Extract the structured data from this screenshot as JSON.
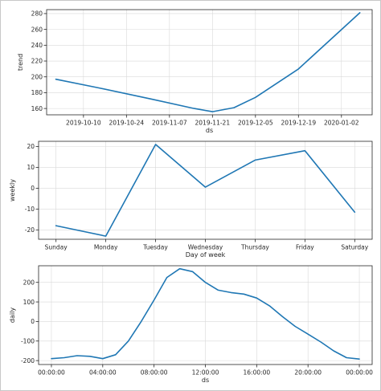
{
  "chart_data": [
    {
      "type": "line",
      "xlabel": "ds",
      "ylabel": "trend",
      "x_type": "date",
      "xlim": [
        "2019-09-28",
        "2020-01-12"
      ],
      "ylim": [
        152,
        285
      ],
      "xticks": [
        "2019-10-10",
        "2019-10-24",
        "2019-11-07",
        "2019-11-21",
        "2019-12-05",
        "2019-12-19",
        "2020-01-02"
      ],
      "yticks": [
        160,
        180,
        200,
        220,
        240,
        260,
        280
      ],
      "grid": true,
      "color": "#1f77b4",
      "series": [
        {
          "x": [
            "2019-10-01",
            "2019-10-15",
            "2019-11-01",
            "2019-11-15",
            "2019-11-21",
            "2019-11-28",
            "2019-12-05",
            "2019-12-19",
            "2020-01-08"
          ],
          "y": [
            197,
            186,
            172,
            160,
            156,
            161,
            174,
            210,
            281
          ]
        }
      ]
    },
    {
      "type": "line",
      "xlabel": "Day of week",
      "ylabel": "weekly",
      "categories": [
        "Sunday",
        "Monday",
        "Tuesday",
        "Wednesday",
        "Thursday",
        "Friday",
        "Saturday"
      ],
      "ylim": [
        -24.5,
        22.5
      ],
      "yticks": [
        -20,
        -10,
        0,
        10,
        20
      ],
      "grid": true,
      "color": "#1f77b4",
      "series": [
        {
          "values": [
            -18,
            -23,
            21,
            0.5,
            13.5,
            18,
            -11.5
          ]
        }
      ]
    },
    {
      "type": "line",
      "xlabel": "ds",
      "ylabel": "daily",
      "x_type": "time",
      "xlim": [
        "-01:00",
        "25:00"
      ],
      "ylim": [
        -220,
        285
      ],
      "xticks": [
        "00:00:00",
        "04:00:00",
        "08:00:00",
        "12:00:00",
        "16:00:00",
        "20:00:00",
        "00:00:00"
      ],
      "yticks": [
        -200,
        -100,
        0,
        100,
        200
      ],
      "grid": true,
      "color": "#1f77b4",
      "series": [
        {
          "x": [
            "00:00",
            "01:00",
            "02:00",
            "03:00",
            "04:00",
            "05:00",
            "06:00",
            "07:00",
            "08:00",
            "09:00",
            "10:00",
            "11:00",
            "12:00",
            "13:00",
            "14:00",
            "15:00",
            "16:00",
            "17:00",
            "18:00",
            "19:00",
            "20:00",
            "21:00",
            "22:00",
            "23:00",
            "24:00"
          ],
          "y": [
            -190,
            -185,
            -175,
            -178,
            -190,
            -170,
            -100,
            0,
            110,
            225,
            270,
            255,
            200,
            160,
            148,
            140,
            120,
            80,
            25,
            -25,
            -65,
            -105,
            -150,
            -185,
            -192
          ]
        }
      ]
    }
  ]
}
